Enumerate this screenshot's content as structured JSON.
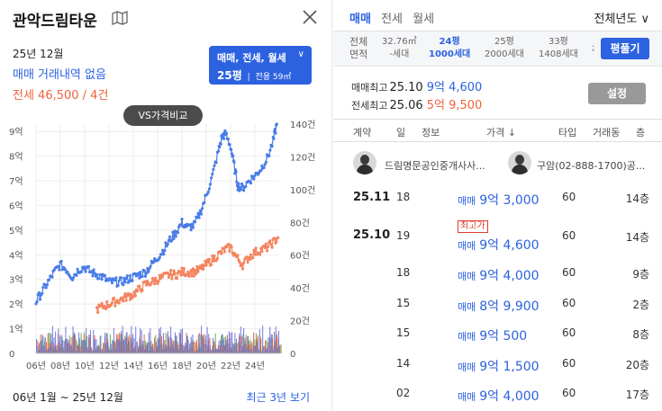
{
  "complex": {
    "title": "관악드림타운",
    "icon": "map-icon",
    "close_icon": "close-icon"
  },
  "summary": {
    "date": "25년 12월",
    "sale_status": "매매 거래내역 없음",
    "jeonse_status": "전세 46,500 / 4건"
  },
  "filter": {
    "types": "매매, 전세, 월세",
    "pyeong": "25평",
    "sub": "전용 59㎡"
  },
  "vs_button": "VS가격비교",
  "period": "06년 1월 ~ 25년 12월",
  "recent_link": "최근 3년 보기",
  "chart_data": {
    "type": "line",
    "x_ticks": [
      "06년",
      "08년",
      "10년",
      "12년",
      "14년",
      "16년",
      "18년",
      "20년",
      "22년",
      "24년"
    ],
    "y_left_ticks": [
      "0",
      "1억",
      "2억",
      "3억",
      "4억",
      "5억",
      "6억",
      "7억",
      "8억",
      "9억"
    ],
    "y_right_ticks": [
      "0",
      "20건",
      "40건",
      "60건",
      "80건",
      "100건",
      "120건",
      "140건"
    ],
    "y_left_range": [
      0,
      9.3
    ],
    "y_right_range": [
      0,
      140
    ],
    "x_range": [
      2006,
      2026
    ],
    "grid": true,
    "colors": {
      "sale": "#4a7ce8",
      "jeonse": "#f4845f",
      "vol_sale": "#6b6fd8",
      "vol_jeonse": "#e0603a",
      "vol_other": "#5ea85e"
    },
    "series": [
      {
        "kind": "sale",
        "x": [
          2006.0,
          2006.5,
          2007.0,
          2007.5,
          2008.0,
          2008.5,
          2009.0,
          2009.5,
          2010.0,
          2010.5,
          2011.0,
          2011.5,
          2012.0,
          2012.5,
          2013.0,
          2013.5,
          2014.0,
          2014.5,
          2015.0,
          2015.5,
          2016.0,
          2016.5,
          2017.0,
          2017.5,
          2018.0,
          2018.5,
          2019.0,
          2019.5,
          2020.0,
          2020.5,
          2021.0,
          2021.3,
          2021.6,
          2022.0,
          2022.3,
          2022.6,
          2023.0,
          2023.5,
          2024.0,
          2024.5,
          2025.0,
          2025.5,
          2025.8
        ],
        "y": [
          2.1,
          2.5,
          2.9,
          3.3,
          3.6,
          3.4,
          3.1,
          3.4,
          3.5,
          3.3,
          3.2,
          3.1,
          2.9,
          2.9,
          2.9,
          3.0,
          3.1,
          3.2,
          3.3,
          3.6,
          3.9,
          4.2,
          4.6,
          4.9,
          5.3,
          5.1,
          5.2,
          5.7,
          6.4,
          7.2,
          8.2,
          8.8,
          8.9,
          8.4,
          7.6,
          6.8,
          6.7,
          7.0,
          7.2,
          7.5,
          7.9,
          8.6,
          9.3
        ]
      },
      {
        "kind": "jeonse",
        "x": [
          2011.0,
          2011.5,
          2012.0,
          2012.5,
          2013.0,
          2013.5,
          2014.0,
          2014.5,
          2015.0,
          2015.5,
          2016.0,
          2016.5,
          2017.0,
          2017.5,
          2018.0,
          2018.5,
          2019.0,
          2019.5,
          2020.0,
          2020.5,
          2021.0,
          2021.5,
          2022.0,
          2022.5,
          2023.0,
          2023.5,
          2024.0,
          2024.5,
          2025.0,
          2025.5,
          2025.9
        ],
        "y": [
          1.8,
          1.9,
          2.0,
          2.1,
          2.2,
          2.3,
          2.4,
          2.6,
          2.8,
          2.9,
          3.0,
          3.1,
          3.2,
          3.2,
          3.3,
          3.3,
          3.3,
          3.4,
          3.6,
          3.8,
          4.0,
          4.2,
          4.3,
          3.9,
          3.6,
          3.9,
          4.1,
          4.2,
          4.3,
          4.5,
          4.7
        ]
      }
    ]
  },
  "right": {
    "tabs": [
      "매매",
      "전세",
      "월세"
    ],
    "year_select": "전체년도",
    "area_header": [
      "전체",
      "면적"
    ],
    "area_options": [
      {
        "top": "32.76㎡",
        "bottom": "-세대",
        "active": false
      },
      {
        "top": "24평",
        "bottom": "1000세대",
        "active": true
      },
      {
        "top": "25평",
        "bottom": "2000세대",
        "active": false
      },
      {
        "top": "33평",
        "bottom": "1408세대",
        "active": false
      }
    ],
    "area_more": ";",
    "pyeong_button": "평풀기",
    "max_sale": {
      "label": "매매최고",
      "date": "25.10",
      "price": "9억 4,600"
    },
    "max_jeonse": {
      "label": "전세최고",
      "date": "25.06",
      "price": "5억 9,500"
    },
    "setting_button": "설정",
    "table_headers": [
      "계약",
      "일",
      "정보",
      "가격 ↓",
      "타입",
      "거래동",
      "층"
    ],
    "agents": [
      {
        "name": "드림명문공인중개사사..."
      },
      {
        "name": "구암(02-888-1700)공..."
      }
    ],
    "badge": "최고가",
    "rows": [
      {
        "date": "25.11",
        "day": "18",
        "type": "매매",
        "price": "9억 3,000",
        "size": "60",
        "floor": "14층"
      },
      {
        "date": "25.10",
        "day": "19",
        "type": "매매",
        "price": "9억 4,600",
        "size": "60",
        "floor": "14층"
      },
      {
        "date": "",
        "day": "18",
        "type": "매매",
        "price": "9억 4,000",
        "size": "60",
        "floor": "9층"
      },
      {
        "date": "",
        "day": "15",
        "type": "매매",
        "price": "8억 9,900",
        "size": "60",
        "floor": "2층"
      },
      {
        "date": "",
        "day": "15",
        "type": "매매",
        "price": "9억 500",
        "size": "60",
        "floor": "8층"
      },
      {
        "date": "",
        "day": "14",
        "type": "매매",
        "price": "9억 1,500",
        "size": "60",
        "floor": "20층"
      },
      {
        "date": "",
        "day": "02",
        "type": "매매",
        "price": "9억 4,000",
        "size": "60",
        "floor": "17층"
      }
    ]
  }
}
